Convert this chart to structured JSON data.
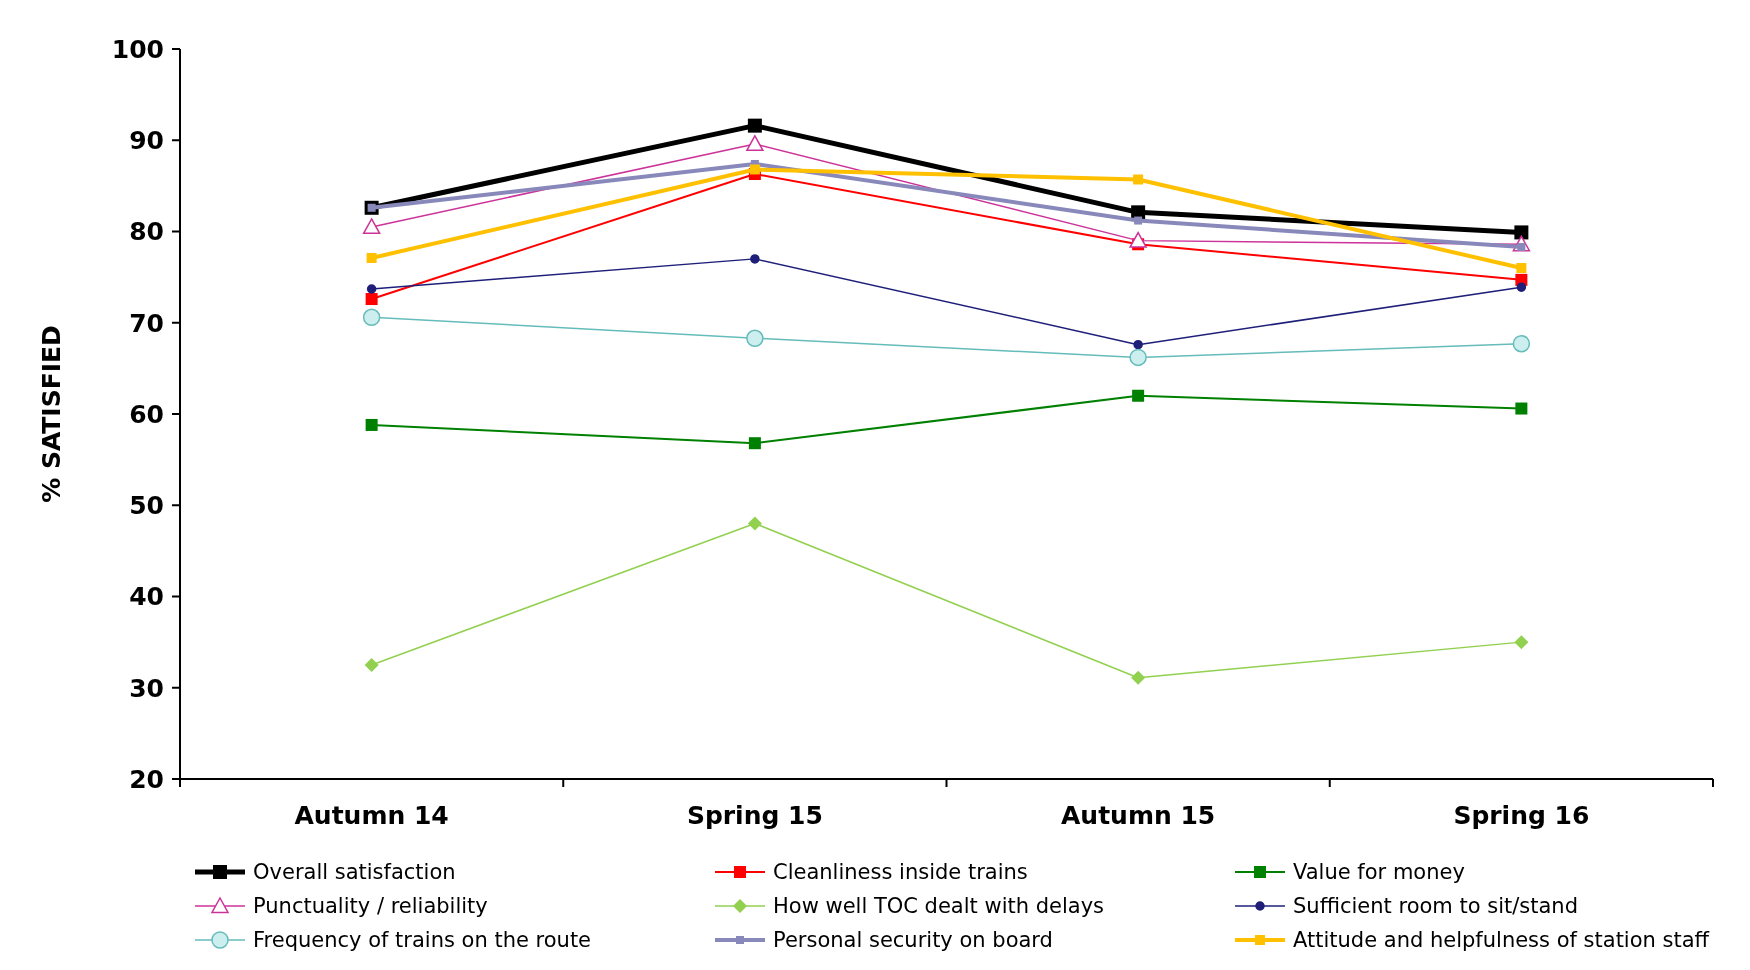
{
  "chart_data": {
    "type": "line",
    "ylabel": "% SATISFIED",
    "categories": [
      "Autumn 14",
      "Spring 15",
      "Autumn 15",
      "Spring 16"
    ],
    "ylim": [
      20,
      100
    ],
    "yticks": [
      20,
      30,
      40,
      50,
      60,
      70,
      80,
      90,
      100
    ],
    "grid": false,
    "legend": "bottom",
    "series": [
      {
        "name": "Overall satisfaction",
        "color": "#000000",
        "marker": "square",
        "values": [
          82.6,
          91.6,
          82.1,
          79.9
        ]
      },
      {
        "name": "Cleanliness inside trains",
        "color": "#ff0000",
        "marker": "square",
        "values": [
          72.6,
          86.3,
          78.6,
          74.7
        ]
      },
      {
        "name": "Value for money",
        "color": "#008000",
        "marker": "square",
        "values": [
          58.8,
          56.8,
          62.0,
          60.6
        ]
      },
      {
        "name": "Punctuality / reliability",
        "color": "#cc3399",
        "marker": "triangle",
        "values": [
          80.5,
          89.6,
          79.0,
          78.6
        ]
      },
      {
        "name": "How well TOC dealt with delays",
        "color": "#92d050",
        "marker": "diamond",
        "values": [
          32.5,
          48.0,
          31.1,
          35.0
        ]
      },
      {
        "name": "Sufficient room to sit/stand",
        "color": "#1f1f7a",
        "marker": "circle",
        "values": [
          73.7,
          77.0,
          67.6,
          73.9
        ]
      },
      {
        "name": "Frequency of trains on the route",
        "color": "#66bbbb",
        "marker": "circle",
        "values": [
          70.6,
          68.3,
          66.2,
          67.7
        ]
      },
      {
        "name": "Personal security on board",
        "color": "#8888bb",
        "marker": "square",
        "values": [
          82.6,
          87.4,
          81.2,
          78.3
        ]
      },
      {
        "name": "Attitude and helpfulness of station staff",
        "color": "#ffc000",
        "marker": "square",
        "values": [
          77.1,
          86.8,
          85.7,
          76.0
        ]
      }
    ]
  }
}
